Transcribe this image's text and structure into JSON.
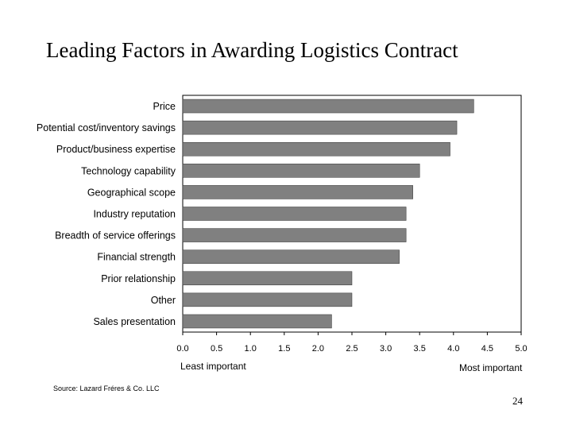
{
  "slide": {
    "title": "Leading Factors in Awarding Logistics Contract",
    "least_label": "Least important",
    "most_label": "Most important",
    "source": "Source: Lazard Fréres & Co. LLC",
    "page_number": "24"
  },
  "colors": {
    "bar": "#808080",
    "bar_stroke": "#333333",
    "axis": "#000000"
  },
  "chart_data": {
    "type": "bar",
    "orientation": "horizontal",
    "title": "",
    "xlabel": "",
    "ylabel": "",
    "xlim": [
      0,
      5
    ],
    "x_ticks": [
      "0.0",
      "0.5",
      "1.0",
      "1.5",
      "2.0",
      "2.5",
      "3.0",
      "3.5",
      "4.0",
      "4.5",
      "5.0"
    ],
    "categories": [
      "Price",
      "Potential cost/inventory savings",
      "Product/business expertise",
      "Technology capability",
      "Geographical scope",
      "Industry reputation",
      "Breadth of service offerings",
      "Financial strength",
      "Prior relationship",
      "Other",
      "Sales presentation"
    ],
    "values": [
      4.3,
      4.05,
      3.95,
      3.5,
      3.4,
      3.3,
      3.3,
      3.2,
      2.5,
      2.5,
      2.2
    ],
    "grid": false,
    "legend": "none"
  }
}
